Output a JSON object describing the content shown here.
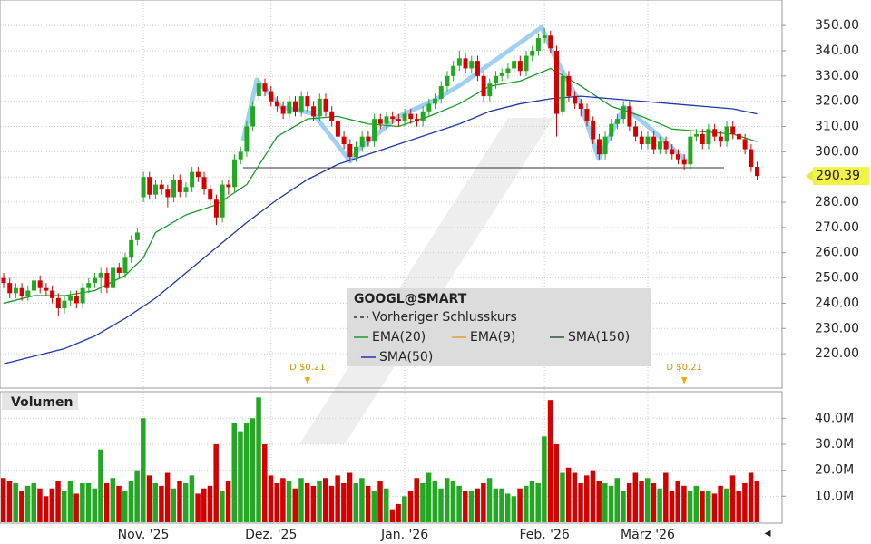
{
  "chart_data": [
    {
      "type": "candlestick",
      "up_color": "#22a822",
      "down_color": "#d40000",
      "xlim": [
        -0.6,
        128.1
      ],
      "ylim": [
        206.4,
        360.1
      ],
      "yticks": [
        {
          "value": 220,
          "label": "220.00"
        },
        {
          "value": 230,
          "label": "230.00"
        },
        {
          "value": 240,
          "label": "240.00"
        },
        {
          "value": 250,
          "label": "250.00"
        },
        {
          "value": 260,
          "label": "260.00"
        },
        {
          "value": 270,
          "label": "270.00"
        },
        {
          "value": 280,
          "label": "280.00"
        },
        {
          "value": 290,
          "label": "290.00"
        },
        {
          "value": 300,
          "label": "300.00"
        },
        {
          "value": 310,
          "label": "310.00"
        },
        {
          "value": 320,
          "label": "320.00"
        },
        {
          "value": 330,
          "label": "330.00"
        },
        {
          "value": 340,
          "label": "340.00"
        },
        {
          "value": 350,
          "label": "350.00"
        }
      ],
      "xticks": [
        {
          "value": 23,
          "label": "Nov. '25"
        },
        {
          "value": 44,
          "label": "Dez. '25"
        },
        {
          "value": 66,
          "label": "Jan. '26"
        },
        {
          "value": 89,
          "label": "Feb. '26"
        },
        {
          "value": 106,
          "label": "März '26"
        }
      ],
      "grid": true,
      "ohlc": [
        [
          250,
          252,
          246,
          248
        ],
        [
          248,
          250,
          242,
          244
        ],
        [
          244,
          248,
          242,
          246
        ],
        [
          246,
          248,
          241,
          243
        ],
        [
          243,
          247,
          241,
          245
        ],
        [
          245,
          251,
          243,
          249
        ],
        [
          249,
          251,
          244,
          246
        ],
        [
          246,
          248,
          243,
          245
        ],
        [
          245,
          247,
          240,
          242
        ],
        [
          242,
          244,
          235,
          238
        ],
        [
          238,
          243,
          236,
          241
        ],
        [
          241,
          245,
          239,
          243
        ],
        [
          243,
          245,
          238,
          240
        ],
        [
          240,
          248,
          238,
          246
        ],
        [
          246,
          250,
          244,
          248
        ],
        [
          248,
          252,
          246,
          250
        ],
        [
          250,
          254,
          244,
          252
        ],
        [
          252,
          254,
          244,
          246
        ],
        [
          246,
          256,
          244,
          254
        ],
        [
          254,
          256,
          250,
          252
        ],
        [
          252,
          260,
          250,
          258
        ],
        [
          258,
          267,
          256,
          265
        ],
        [
          265,
          270,
          263,
          268
        ],
        [
          282,
          292,
          280,
          290
        ],
        [
          290,
          292,
          281,
          283
        ],
        [
          283,
          289,
          281,
          287
        ],
        [
          287,
          289,
          283,
          285
        ],
        [
          285,
          287,
          278,
          282
        ],
        [
          282,
          291,
          280,
          289
        ],
        [
          289,
          291,
          282,
          284
        ],
        [
          284,
          288,
          282,
          286
        ],
        [
          286,
          294,
          284,
          292
        ],
        [
          292,
          294,
          288,
          290
        ],
        [
          290,
          292,
          283,
          285
        ],
        [
          285,
          287,
          279,
          281
        ],
        [
          281,
          283,
          271,
          274
        ],
        [
          274,
          289,
          272,
          287
        ],
        [
          287,
          289,
          283,
          286
        ],
        [
          286,
          299,
          284,
          297
        ],
        [
          297,
          302,
          295,
          300
        ],
        [
          300,
          312,
          298,
          310
        ],
        [
          310,
          320,
          308,
          318
        ],
        [
          322,
          329,
          320,
          327
        ],
        [
          327,
          329,
          322,
          324
        ],
        [
          324,
          326,
          318,
          320
        ],
        [
          320,
          322,
          316,
          318
        ],
        [
          318,
          320,
          313,
          315
        ],
        [
          315,
          322,
          313,
          320
        ],
        [
          320,
          322,
          314,
          316
        ],
        [
          316,
          324,
          314,
          322
        ],
        [
          322,
          324,
          316,
          318
        ],
        [
          318,
          320,
          312,
          314
        ],
        [
          314,
          323,
          312,
          321
        ],
        [
          321,
          323,
          314,
          316
        ],
        [
          316,
          318,
          310,
          312
        ],
        [
          312,
          314,
          304,
          306
        ],
        [
          306,
          308,
          301,
          303
        ],
        [
          303,
          305,
          296,
          298
        ],
        [
          298,
          304,
          296,
          302
        ],
        [
          302,
          308,
          300,
          306
        ],
        [
          306,
          308,
          302,
          304
        ],
        [
          304,
          315,
          302,
          313
        ],
        [
          313,
          315,
          309,
          311
        ],
        [
          311,
          316,
          309,
          314
        ],
        [
          314,
          316,
          311,
          313
        ],
        [
          313,
          315,
          310,
          312
        ],
        [
          312,
          317,
          310,
          315
        ],
        [
          315,
          317,
          311,
          313
        ],
        [
          313,
          315,
          310,
          312
        ],
        [
          312,
          318,
          310,
          316
        ],
        [
          316,
          321,
          314,
          319
        ],
        [
          319,
          323,
          317,
          321
        ],
        [
          321,
          328,
          319,
          326
        ],
        [
          326,
          332,
          324,
          330
        ],
        [
          330,
          336,
          328,
          334
        ],
        [
          334,
          340,
          332,
          337
        ],
        [
          337,
          339,
          331,
          333
        ],
        [
          333,
          338,
          331,
          336
        ],
        [
          336,
          338,
          328,
          330
        ],
        [
          330,
          332,
          320,
          322
        ],
        [
          322,
          329,
          320,
          327
        ],
        [
          327,
          332,
          325,
          330
        ],
        [
          330,
          333,
          328,
          331
        ],
        [
          331,
          335,
          329,
          333
        ],
        [
          333,
          338,
          331,
          336
        ],
        [
          336,
          338,
          330,
          332
        ],
        [
          332,
          340,
          330,
          338
        ],
        [
          338,
          342,
          336,
          340
        ],
        [
          340,
          347,
          338,
          345
        ],
        [
          345,
          349,
          343,
          346
        ],
        [
          346,
          348,
          339,
          341
        ],
        [
          340,
          342,
          306,
          315
        ],
        [
          316,
          332,
          314,
          330
        ],
        [
          330,
          332,
          320,
          322
        ],
        [
          322,
          324,
          317,
          319
        ],
        [
          319,
          321,
          314,
          317
        ],
        [
          317,
          319,
          310,
          312
        ],
        [
          312,
          314,
          303,
          305
        ],
        [
          305,
          307,
          297,
          299
        ],
        [
          299,
          308,
          297,
          306
        ],
        [
          306,
          313,
          304,
          311
        ],
        [
          311,
          315,
          309,
          313
        ],
        [
          313,
          320,
          311,
          318
        ],
        [
          318,
          320,
          308,
          310
        ],
        [
          310,
          312,
          304,
          306
        ],
        [
          306,
          308,
          301,
          303
        ],
        [
          303,
          308,
          301,
          306
        ],
        [
          306,
          308,
          299,
          301
        ],
        [
          301,
          306,
          299,
          304
        ],
        [
          304,
          306,
          299,
          301
        ],
        [
          301,
          303,
          297,
          299
        ],
        [
          299,
          301,
          295,
          297
        ],
        [
          297,
          299,
          293,
          295
        ],
        [
          295,
          308,
          293,
          306
        ],
        [
          306,
          309,
          304,
          307
        ],
        [
          307,
          309,
          301,
          303
        ],
        [
          303,
          311,
          301,
          309
        ],
        [
          309,
          311,
          304,
          306
        ],
        [
          306,
          308,
          302,
          304
        ],
        [
          304,
          312,
          302,
          310
        ],
        [
          310,
          312,
          305,
          307
        ],
        [
          307,
          309,
          303,
          305
        ],
        [
          305,
          307,
          299,
          301
        ],
        [
          301,
          303,
          292,
          294
        ],
        [
          294,
          296,
          289,
          290.39
        ]
      ],
      "series": [
        {
          "name": "Vorheriger Schlusskurs",
          "color": "#333333"
        },
        {
          "name": "EMA(20)",
          "color": "#1c9a2c",
          "x": [
            0,
            5,
            10,
            15,
            20,
            23,
            25,
            30,
            35,
            40,
            45,
            50,
            55,
            60,
            65,
            70,
            75,
            80,
            85,
            90,
            95,
            100,
            105,
            110,
            115,
            120,
            124
          ],
          "values": [
            240,
            243,
            243,
            245,
            251,
            258,
            268,
            275,
            279,
            287,
            306,
            313,
            314,
            311,
            310,
            314,
            319,
            326,
            328,
            333,
            326,
            318,
            314,
            309,
            308,
            307,
            304
          ]
        },
        {
          "name": "EMA(9)",
          "color": "#e0a040"
        },
        {
          "name": "SMA(150)",
          "color": "#2a5a2a"
        },
        {
          "name": "SMA(50)",
          "color": "#1a3aa8",
          "x": [
            0,
            5,
            10,
            15,
            20,
            25,
            30,
            35,
            40,
            45,
            50,
            55,
            60,
            65,
            70,
            75,
            80,
            85,
            90,
            95,
            100,
            105,
            110,
            115,
            120,
            124
          ],
          "values": [
            216,
            219,
            222,
            227,
            234,
            242,
            252,
            262,
            272,
            281,
            289,
            295,
            299,
            303,
            307,
            311,
            316,
            319,
            321,
            322,
            321,
            320,
            319,
            318,
            317,
            315
          ]
        }
      ],
      "legend_title": "GOOGL@SMART",
      "annotations": [
        {
          "text": "D $0.21",
          "x": 50
        },
        {
          "text": "D $0.21",
          "x": 112
        }
      ]
    },
    {
      "type": "bar",
      "title": "Volumen",
      "ylim": [
        0,
        50.2
      ],
      "yticks": [
        {
          "value": 10,
          "label": "10.0M"
        },
        {
          "value": 20,
          "label": "20.0M"
        },
        {
          "value": 30,
          "label": "30.0M"
        },
        {
          "value": 40,
          "label": "40.0M"
        }
      ],
      "values": [
        17,
        16,
        15,
        12,
        14,
        15,
        13,
        10,
        13,
        16,
        12,
        16,
        11,
        15,
        15,
        13,
        28,
        15,
        17,
        14,
        12,
        16,
        20,
        40,
        18,
        15,
        14,
        19,
        13,
        16,
        15,
        18,
        11,
        13,
        14,
        30,
        12,
        16,
        38,
        35,
        38,
        40,
        48,
        30,
        18,
        15,
        17,
        16,
        13,
        17,
        15,
        14,
        16,
        17,
        14,
        18,
        15,
        19,
        15,
        17,
        14,
        12,
        16,
        13,
        5,
        7,
        10,
        12,
        17,
        15,
        19,
        16,
        13,
        17,
        16,
        14,
        12,
        12,
        13,
        15,
        17,
        13,
        13,
        11,
        10,
        13,
        14,
        16,
        15,
        33,
        47,
        30,
        19,
        21,
        19,
        15,
        18,
        20,
        16,
        15,
        14,
        17,
        12,
        15,
        19,
        16,
        17,
        15,
        13,
        19,
        12,
        16,
        14,
        12,
        14,
        12,
        12,
        11,
        14,
        13,
        18,
        12,
        15,
        19,
        16
      ]
    }
  ]
}
